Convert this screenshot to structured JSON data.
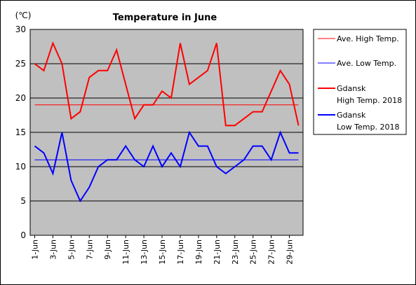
{
  "chart_data": {
    "type": "line",
    "title": "Temperature in June",
    "unit_label": "(℃)",
    "ylim": [
      0,
      30
    ],
    "y_ticks": [
      0,
      5,
      10,
      15,
      20,
      25,
      30
    ],
    "grid": true,
    "legend_placement": "right",
    "plot_background": "#c0c0c0",
    "x": [
      "1-Jun",
      "2-Jun",
      "3-Jun",
      "4-Jun",
      "5-Jun",
      "6-Jun",
      "7-Jun",
      "8-Jun",
      "9-Jun",
      "10-Jun",
      "11-Jun",
      "12-Jun",
      "13-Jun",
      "14-Jun",
      "15-Jun",
      "16-Jun",
      "17-Jun",
      "18-Jun",
      "19-Jun",
      "20-Jun",
      "21-Jun",
      "22-Jun",
      "23-Jun",
      "24-Jun",
      "25-Jun",
      "26-Jun",
      "27-Jun",
      "28-Jun",
      "29-Jun",
      "30-Jun"
    ],
    "x_tick_labels": [
      "1-Jun",
      "3-Jun",
      "5-Jun",
      "7-Jun",
      "9-Jun",
      "11-Jun",
      "13-Jun",
      "15-Jun",
      "17-Jun",
      "19-Jun",
      "21-Jun",
      "23-Jun",
      "25-Jun",
      "27-Jun",
      "29-Jun"
    ],
    "series": [
      {
        "name": "Ave. High Temp.",
        "legend_lines": [
          "Ave. High Temp."
        ],
        "color": "#ff0000",
        "style": "thin",
        "values": [
          19,
          19,
          19,
          19,
          19,
          19,
          19,
          19,
          19,
          19,
          19,
          19,
          19,
          19,
          19,
          19,
          19,
          19,
          19,
          19,
          19,
          19,
          19,
          19,
          19,
          19,
          19,
          19,
          19,
          19
        ]
      },
      {
        "name": "Ave. Low Temp.",
        "legend_lines": [
          "Ave. Low Temp."
        ],
        "color": "#0000ff",
        "style": "thin",
        "values": [
          11,
          11,
          11,
          11,
          11,
          11,
          11,
          11,
          11,
          11,
          11,
          11,
          11,
          11,
          11,
          11,
          11,
          11,
          11,
          11,
          11,
          11,
          11,
          11,
          11,
          11,
          11,
          11,
          11,
          11
        ]
      },
      {
        "name": "Gdansk High Temp. 2018",
        "legend_lines": [
          "Gdansk",
          "High Temp. 2018"
        ],
        "color": "#ff0000",
        "style": "thick",
        "values": [
          25,
          24,
          28,
          25,
          17,
          18,
          23,
          24,
          24,
          27,
          22,
          17,
          19,
          19,
          21,
          20,
          28,
          22,
          23,
          24,
          28,
          16,
          16,
          17,
          18,
          18,
          21,
          24,
          22,
          16
        ]
      },
      {
        "name": "Gdansk Low Temp. 2018",
        "legend_lines": [
          "Gdansk",
          "Low Temp. 2018"
        ],
        "color": "#0000ff",
        "style": "thick",
        "values": [
          13,
          12,
          9,
          15,
          8,
          5,
          7,
          10,
          11,
          11,
          13,
          11,
          10,
          13,
          10,
          12,
          10,
          15,
          13,
          13,
          10,
          9,
          10,
          11,
          13,
          13,
          11,
          15,
          12,
          12
        ]
      }
    ]
  }
}
